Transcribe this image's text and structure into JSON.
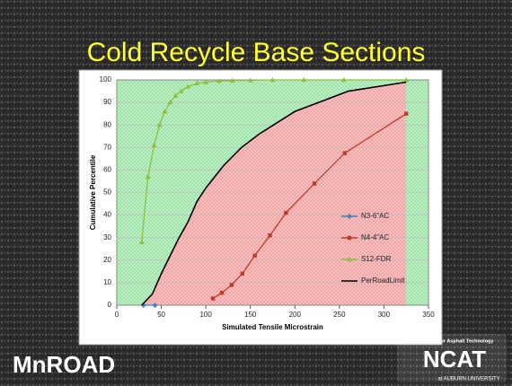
{
  "chart_data": {
    "type": "line",
    "title": "Cold Recycle Base Sections",
    "xlabel": "Simulated Tensile Microstrain",
    "ylabel": "Cumulative Percentile",
    "xlim": [
      0,
      350
    ],
    "xticks": [
      0,
      50,
      100,
      150,
      200,
      250,
      300,
      350
    ],
    "ylim": [
      0,
      100
    ],
    "yticks": [
      0,
      10,
      20,
      30,
      40,
      50,
      60,
      70,
      80,
      90,
      100
    ],
    "grid": true,
    "legend": "right",
    "series": [
      {
        "name": "N3-6\"AC",
        "color": "#4a7ebb",
        "marker": "diamond",
        "x": [
          30,
          43
        ],
        "values": [
          0,
          0
        ]
      },
      {
        "name": "N4-4\"AC",
        "color": "#c0392b",
        "marker": "square",
        "x": [
          108,
          118,
          129,
          141,
          155,
          172,
          190,
          222,
          256,
          325
        ],
        "values": [
          3,
          5.5,
          9,
          14,
          22,
          31,
          41,
          54,
          67.5,
          85
        ]
      },
      {
        "name": "S12-FDR",
        "color": "#8fbf3f",
        "marker": "triangle",
        "x": [
          28,
          35,
          42,
          48,
          54,
          60,
          66,
          72,
          80,
          90,
          100,
          115,
          130,
          150,
          175,
          210,
          255,
          325
        ],
        "values": [
          28,
          57,
          71,
          80,
          86,
          90,
          93,
          95,
          97,
          98.5,
          99,
          99.5,
          99.7,
          99.8,
          100,
          100,
          100,
          100
        ]
      },
      {
        "name": "PerRoadLimit",
        "color": "#000000",
        "marker": "none",
        "x": [
          28,
          40,
          50,
          60,
          70,
          80,
          90,
          100,
          120,
          140,
          160,
          180,
          200,
          220,
          260,
          325
        ],
        "values": [
          0,
          5,
          14,
          22,
          30,
          37,
          46,
          52,
          62,
          70,
          76,
          81,
          86,
          89,
          95,
          99
        ]
      }
    ]
  },
  "logos": {
    "left": "MnROAD",
    "right_org": "National Center for Asphalt Technology",
    "right_name": "NCAT",
    "right_sub": "at AUBURN UNIVERSITY"
  }
}
